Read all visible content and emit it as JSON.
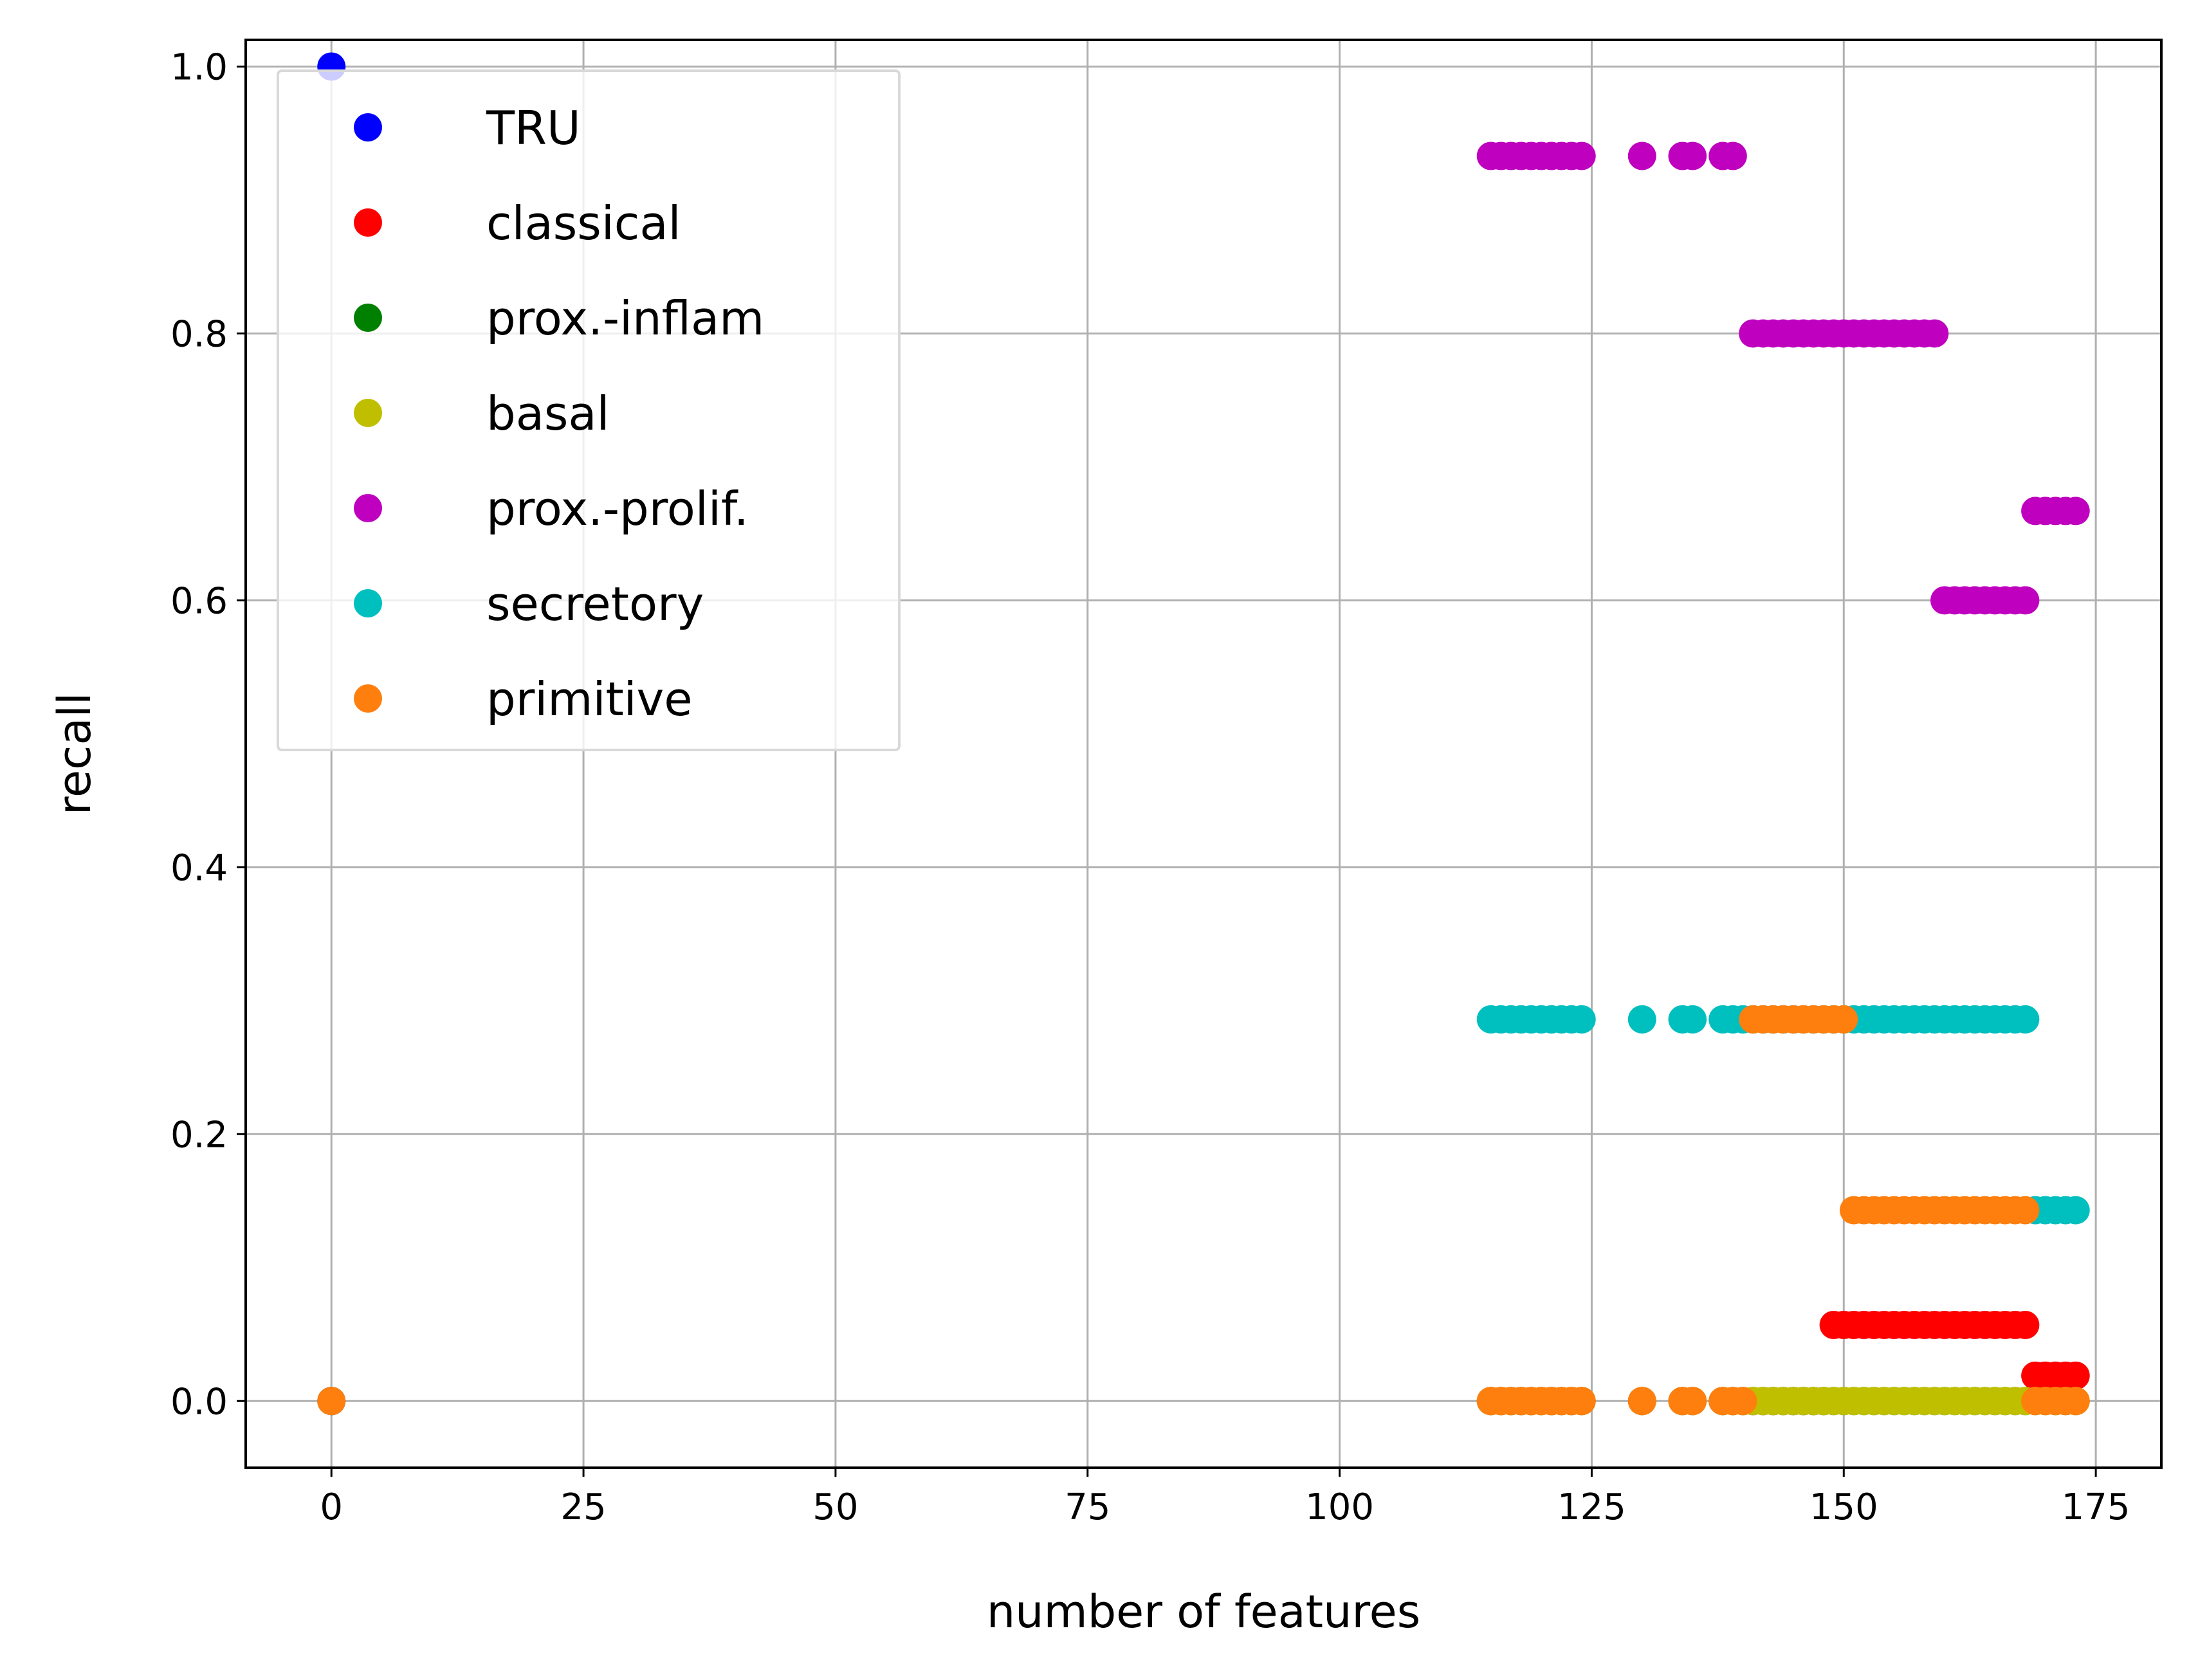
{
  "chart_data": {
    "type": "scatter",
    "title": "",
    "xlabel": "number of features",
    "ylabel": "recall",
    "xlim": [
      -8.5,
      181.5
    ],
    "ylim": [
      -0.05,
      1.02
    ],
    "xticks": [
      0,
      25,
      50,
      75,
      100,
      125,
      150,
      175
    ],
    "yticks": [
      0.0,
      0.2,
      0.4,
      0.6,
      0.8,
      1.0
    ],
    "xtick_labels": [
      "0",
      "25",
      "50",
      "75",
      "100",
      "125",
      "150",
      "175"
    ],
    "ytick_labels": [
      "0.0",
      "0.2",
      "0.4",
      "0.6",
      "0.8",
      "1.0"
    ],
    "grid": true,
    "legend_position": "upper-left",
    "series": [
      {
        "name": "TRU",
        "color": "#0000ff",
        "points": [
          [
            0,
            1.0
          ]
        ]
      },
      {
        "name": "classical",
        "color": "#ff0000",
        "points": [
          [
            0,
            0.0
          ],
          [
            115,
            0
          ],
          [
            116,
            0
          ],
          [
            117,
            0
          ],
          [
            118,
            0
          ],
          [
            119,
            0
          ],
          [
            120,
            0
          ],
          [
            121,
            0
          ],
          [
            122,
            0
          ],
          [
            123,
            0
          ],
          [
            124,
            0
          ],
          [
            130,
            0
          ],
          [
            134,
            0
          ],
          [
            135,
            0
          ],
          [
            138,
            0
          ],
          [
            139,
            0
          ],
          [
            140,
            0
          ],
          [
            141,
            0
          ],
          [
            142,
            0
          ],
          [
            143,
            0
          ],
          [
            144,
            0
          ],
          [
            145,
            0
          ],
          [
            146,
            0
          ],
          [
            147,
            0
          ],
          [
            148,
            0
          ],
          [
            149,
            0.057
          ],
          [
            150,
            0.057
          ],
          [
            151,
            0.057
          ],
          [
            152,
            0.057
          ],
          [
            153,
            0.057
          ],
          [
            154,
            0.057
          ],
          [
            155,
            0.057
          ],
          [
            156,
            0.057
          ],
          [
            157,
            0.057
          ],
          [
            158,
            0.057
          ],
          [
            159,
            0.057
          ],
          [
            160,
            0.057
          ],
          [
            161,
            0.057
          ],
          [
            162,
            0.057
          ],
          [
            163,
            0.057
          ],
          [
            164,
            0.057
          ],
          [
            165,
            0.057
          ],
          [
            166,
            0.057
          ],
          [
            167,
            0.057
          ],
          [
            168,
            0.057
          ],
          [
            169,
            0.019
          ],
          [
            170,
            0.019
          ],
          [
            171,
            0.019
          ],
          [
            172,
            0.019
          ],
          [
            173,
            0.019
          ]
        ]
      },
      {
        "name": "prox.-inflam",
        "color": "#008000",
        "points": [
          [
            0,
            0.0
          ],
          [
            115,
            0
          ],
          [
            116,
            0
          ],
          [
            117,
            0
          ],
          [
            118,
            0
          ],
          [
            119,
            0
          ],
          [
            120,
            0
          ],
          [
            121,
            0
          ],
          [
            122,
            0
          ],
          [
            123,
            0
          ],
          [
            124,
            0
          ],
          [
            130,
            0
          ],
          [
            134,
            0
          ],
          [
            135,
            0
          ],
          [
            138,
            0
          ],
          [
            139,
            0
          ],
          [
            140,
            0
          ],
          [
            141,
            0
          ],
          [
            142,
            0
          ],
          [
            143,
            0
          ],
          [
            144,
            0
          ],
          [
            145,
            0
          ],
          [
            146,
            0
          ],
          [
            147,
            0
          ],
          [
            148,
            0
          ],
          [
            149,
            0
          ],
          [
            150,
            0
          ],
          [
            151,
            0
          ],
          [
            152,
            0
          ],
          [
            153,
            0
          ],
          [
            154,
            0
          ],
          [
            155,
            0
          ],
          [
            156,
            0
          ],
          [
            157,
            0
          ],
          [
            158,
            0
          ],
          [
            159,
            0
          ],
          [
            160,
            0
          ],
          [
            161,
            0
          ],
          [
            162,
            0
          ],
          [
            163,
            0
          ],
          [
            164,
            0
          ],
          [
            165,
            0
          ],
          [
            166,
            0
          ],
          [
            167,
            0
          ],
          [
            168,
            0
          ],
          [
            169,
            0
          ],
          [
            170,
            0
          ],
          [
            171,
            0
          ],
          [
            172,
            0
          ],
          [
            173,
            0
          ]
        ]
      },
      {
        "name": "basal",
        "color": "#bfbf00",
        "points": [
          [
            0,
            0.0
          ],
          [
            115,
            0
          ],
          [
            116,
            0
          ],
          [
            117,
            0
          ],
          [
            118,
            0
          ],
          [
            119,
            0
          ],
          [
            120,
            0
          ],
          [
            121,
            0
          ],
          [
            122,
            0
          ],
          [
            123,
            0
          ],
          [
            124,
            0
          ],
          [
            130,
            0
          ],
          [
            134,
            0
          ],
          [
            135,
            0
          ],
          [
            138,
            0
          ],
          [
            139,
            0
          ],
          [
            140,
            0
          ],
          [
            141,
            0
          ],
          [
            142,
            0
          ],
          [
            143,
            0
          ],
          [
            144,
            0
          ],
          [
            145,
            0
          ],
          [
            146,
            0
          ],
          [
            147,
            0
          ],
          [
            148,
            0
          ],
          [
            149,
            0
          ],
          [
            150,
            0
          ],
          [
            151,
            0
          ],
          [
            152,
            0
          ],
          [
            153,
            0
          ],
          [
            154,
            0
          ],
          [
            155,
            0
          ],
          [
            156,
            0
          ],
          [
            157,
            0
          ],
          [
            158,
            0
          ],
          [
            159,
            0
          ],
          [
            160,
            0
          ],
          [
            161,
            0
          ],
          [
            162,
            0
          ],
          [
            163,
            0
          ],
          [
            164,
            0
          ],
          [
            165,
            0
          ],
          [
            166,
            0
          ],
          [
            167,
            0
          ],
          [
            168,
            0
          ],
          [
            169,
            0
          ],
          [
            170,
            0
          ],
          [
            171,
            0
          ],
          [
            172,
            0
          ],
          [
            173,
            0
          ]
        ]
      },
      {
        "name": "prox.-prolif.",
        "color": "#bf00bf",
        "points": [
          [
            0,
            0.0
          ],
          [
            115,
            0.933
          ],
          [
            116,
            0.933
          ],
          [
            117,
            0.933
          ],
          [
            118,
            0.933
          ],
          [
            119,
            0.933
          ],
          [
            120,
            0.933
          ],
          [
            121,
            0.933
          ],
          [
            122,
            0.933
          ],
          [
            123,
            0.933
          ],
          [
            124,
            0.933
          ],
          [
            130,
            0.933
          ],
          [
            134,
            0.933
          ],
          [
            135,
            0.933
          ],
          [
            138,
            0.933
          ],
          [
            139,
            0.933
          ],
          [
            141,
            0.8
          ],
          [
            142,
            0.8
          ],
          [
            143,
            0.8
          ],
          [
            144,
            0.8
          ],
          [
            145,
            0.8
          ],
          [
            146,
            0.8
          ],
          [
            147,
            0.8
          ],
          [
            148,
            0.8
          ],
          [
            149,
            0.8
          ],
          [
            150,
            0.8
          ],
          [
            151,
            0.8
          ],
          [
            152,
            0.8
          ],
          [
            153,
            0.8
          ],
          [
            154,
            0.8
          ],
          [
            155,
            0.8
          ],
          [
            156,
            0.8
          ],
          [
            157,
            0.8
          ],
          [
            158,
            0.8
          ],
          [
            159,
            0.8
          ],
          [
            160,
            0.6
          ],
          [
            161,
            0.6
          ],
          [
            162,
            0.6
          ],
          [
            163,
            0.6
          ],
          [
            164,
            0.6
          ],
          [
            165,
            0.6
          ],
          [
            166,
            0.6
          ],
          [
            167,
            0.6
          ],
          [
            168,
            0.6
          ],
          [
            169,
            0.667
          ],
          [
            170,
            0.667
          ],
          [
            171,
            0.667
          ],
          [
            172,
            0.667
          ],
          [
            173,
            0.667
          ]
        ]
      },
      {
        "name": "secretory",
        "color": "#00bfbf",
        "points": [
          [
            0,
            0.0
          ],
          [
            115,
            0.286
          ],
          [
            116,
            0.286
          ],
          [
            117,
            0.286
          ],
          [
            118,
            0.286
          ],
          [
            119,
            0.286
          ],
          [
            120,
            0.286
          ],
          [
            121,
            0.286
          ],
          [
            122,
            0.286
          ],
          [
            123,
            0.286
          ],
          [
            124,
            0.286
          ],
          [
            130,
            0.286
          ],
          [
            134,
            0.286
          ],
          [
            135,
            0.286
          ],
          [
            138,
            0.286
          ],
          [
            139,
            0.286
          ],
          [
            140,
            0.286
          ],
          [
            141,
            0.286
          ],
          [
            142,
            0.286
          ],
          [
            143,
            0.286
          ],
          [
            144,
            0.286
          ],
          [
            145,
            0.286
          ],
          [
            146,
            0.286
          ],
          [
            147,
            0.286
          ],
          [
            148,
            0.286
          ],
          [
            149,
            0.286
          ],
          [
            150,
            0.286
          ],
          [
            151,
            0.286
          ],
          [
            152,
            0.286
          ],
          [
            153,
            0.286
          ],
          [
            154,
            0.286
          ],
          [
            155,
            0.286
          ],
          [
            156,
            0.286
          ],
          [
            157,
            0.286
          ],
          [
            158,
            0.286
          ],
          [
            159,
            0.286
          ],
          [
            160,
            0.286
          ],
          [
            161,
            0.286
          ],
          [
            162,
            0.286
          ],
          [
            163,
            0.286
          ],
          [
            164,
            0.286
          ],
          [
            165,
            0.286
          ],
          [
            166,
            0.286
          ],
          [
            167,
            0.286
          ],
          [
            168,
            0.286
          ],
          [
            169,
            0.143
          ],
          [
            170,
            0.143
          ],
          [
            171,
            0.143
          ],
          [
            172,
            0.143
          ],
          [
            173,
            0.143
          ]
        ]
      },
      {
        "name": "primitive",
        "color": "#ff7f0e",
        "points": [
          [
            0,
            0.0
          ],
          [
            115,
            0
          ],
          [
            116,
            0
          ],
          [
            117,
            0
          ],
          [
            118,
            0
          ],
          [
            119,
            0
          ],
          [
            120,
            0
          ],
          [
            121,
            0
          ],
          [
            122,
            0
          ],
          [
            123,
            0
          ],
          [
            124,
            0
          ],
          [
            130,
            0
          ],
          [
            134,
            0
          ],
          [
            135,
            0
          ],
          [
            138,
            0
          ],
          [
            139,
            0
          ],
          [
            140,
            0
          ],
          [
            141,
            0.286
          ],
          [
            142,
            0.286
          ],
          [
            143,
            0.286
          ],
          [
            144,
            0.286
          ],
          [
            145,
            0.286
          ],
          [
            146,
            0.286
          ],
          [
            147,
            0.286
          ],
          [
            148,
            0.286
          ],
          [
            149,
            0.286
          ],
          [
            150,
            0.286
          ],
          [
            151,
            0.143
          ],
          [
            152,
            0.143
          ],
          [
            153,
            0.143
          ],
          [
            154,
            0.143
          ],
          [
            155,
            0.143
          ],
          [
            156,
            0.143
          ],
          [
            157,
            0.143
          ],
          [
            158,
            0.143
          ],
          [
            159,
            0.143
          ],
          [
            160,
            0.143
          ],
          [
            161,
            0.143
          ],
          [
            162,
            0.143
          ],
          [
            163,
            0.143
          ],
          [
            164,
            0.143
          ],
          [
            165,
            0.143
          ],
          [
            166,
            0.143
          ],
          [
            167,
            0.143
          ],
          [
            168,
            0.143
          ],
          [
            169,
            0
          ],
          [
            170,
            0
          ],
          [
            171,
            0
          ],
          [
            172,
            0
          ],
          [
            173,
            0
          ]
        ]
      }
    ]
  }
}
